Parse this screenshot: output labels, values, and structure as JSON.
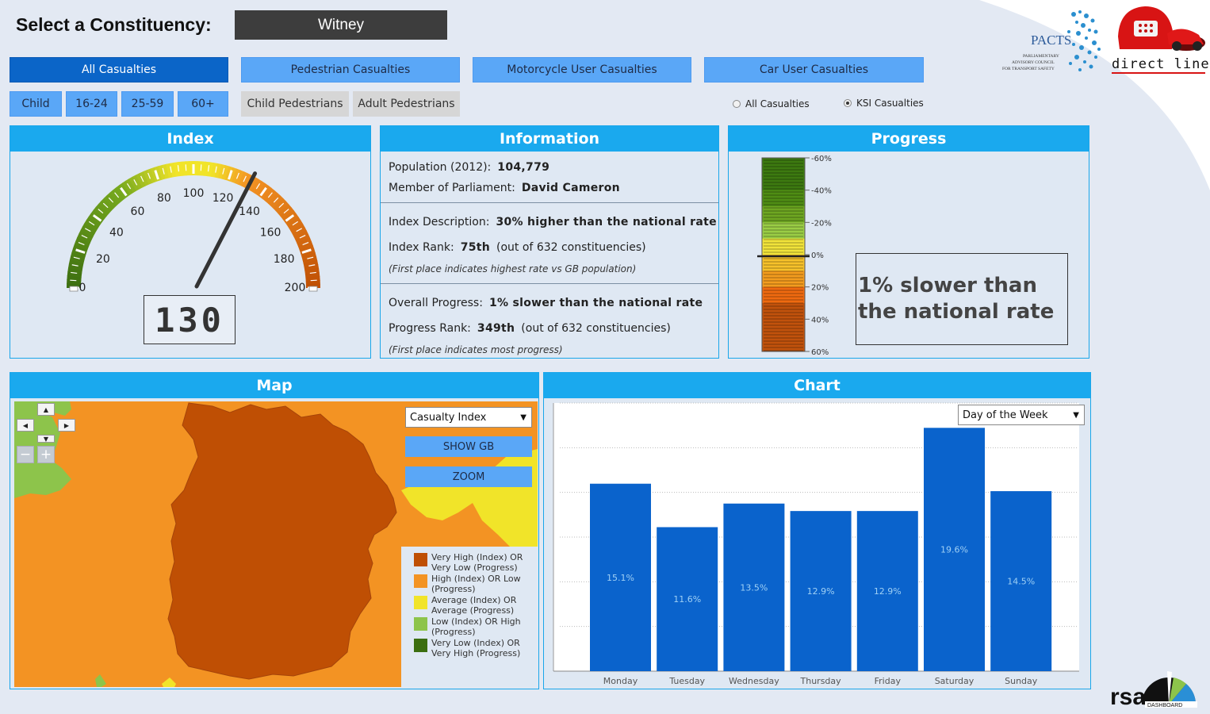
{
  "header": {
    "select_label": "Select a Constituency:",
    "constituency": "Witney"
  },
  "tabs": {
    "main": [
      {
        "label": "All Casualties",
        "active": true
      },
      {
        "label": "Pedestrian Casualties",
        "active": false
      },
      {
        "label": "Motorcycle User Casualties",
        "active": false
      },
      {
        "label": "Car User Casualties",
        "active": false
      }
    ],
    "age": [
      "Child",
      "16-24",
      "25-59",
      "60+"
    ],
    "ped": [
      "Child Pedestrians",
      "Adult Pedestrians"
    ]
  },
  "radios": [
    {
      "label": "All Casualties",
      "selected": false
    },
    {
      "label": "KSI Casualties",
      "selected": true
    }
  ],
  "logos": {
    "pacts_title": "PACTS",
    "pacts_sub1": "PARLIAMENTARY",
    "pacts_sub2": "ADVISORY COUNCIL",
    "pacts_sub3": "FOR TRANSPORT SAFETY",
    "direct_line": "direct line",
    "rsa": "rsa",
    "rsa_sub": "DASHBOARD"
  },
  "index_panel": {
    "title": "Index",
    "value": "130",
    "gauge_value": 130,
    "gauge_min": 0,
    "gauge_max": 200,
    "ticks": [
      "0",
      "20",
      "40",
      "60",
      "80",
      "100",
      "120",
      "140",
      "160",
      "180",
      "200"
    ]
  },
  "info_panel": {
    "title": "Information",
    "population_label": "Population (2012):",
    "population_value": "104,779",
    "mp_label": "Member of Parliament:",
    "mp_value": "David Cameron",
    "index_desc_label": "Index Description:",
    "index_desc_value": "30% higher than the national rate",
    "index_rank_label": "Index Rank:",
    "index_rank_value": "75th",
    "index_rank_suffix": "(out of 632 constituencies)",
    "index_note": "(First place indicates highest rate vs GB population)",
    "progress_label": "Overall Progress:",
    "progress_value": "1% slower than the national rate",
    "progress_rank_label": "Progress Rank:",
    "progress_rank_value": "349th",
    "progress_rank_suffix": "(out of 632 constituencies)",
    "progress_note": "(First place indicates most progress)"
  },
  "progress_panel": {
    "title": "Progress",
    "scale_labels": [
      "-60%",
      "-40%",
      "-20%",
      "0%",
      "20%",
      "40%",
      "60%"
    ],
    "value_percent": 1,
    "message": "1% slower than the national rate",
    "colors": [
      "#3d7a10",
      "#4f8d14",
      "#6ea621",
      "#9acd45",
      "#f1e33a",
      "#f39c1e",
      "#ef6a10",
      "#c1520c"
    ]
  },
  "map_panel": {
    "title": "Map",
    "dropdown": "Casualty Index",
    "show_gb": "SHOW GB",
    "zoom": "ZOOM",
    "legend": [
      {
        "label": "Very High (Index) OR Very Low (Progress)",
        "color": "#bf4f04"
      },
      {
        "label": "High (Index) OR Low (Progress)",
        "color": "#f39323"
      },
      {
        "label": "Average (Index) OR Average (Progress)",
        "color": "#f1e429"
      },
      {
        "label": "Low (Index) OR High (Progress)",
        "color": "#8dc44b"
      },
      {
        "label": "Very Low (Index) OR Very High (Progress)",
        "color": "#3b6e10"
      }
    ]
  },
  "chart_panel": {
    "title": "Chart",
    "dropdown": "Day of the Week"
  },
  "chart_data": {
    "type": "bar",
    "categories": [
      "Monday",
      "Tuesday",
      "Wednesday",
      "Thursday",
      "Friday",
      "Saturday",
      "Sunday"
    ],
    "values": [
      15.1,
      11.6,
      13.5,
      12.9,
      12.9,
      19.6,
      14.5
    ],
    "labels": [
      "15.1%",
      "11.6%",
      "13.5%",
      "12.9%",
      "12.9%",
      "19.6%",
      "14.5%"
    ],
    "ylim": [
      0,
      21.6
    ],
    "grid": true,
    "color": "#0a63cc"
  }
}
